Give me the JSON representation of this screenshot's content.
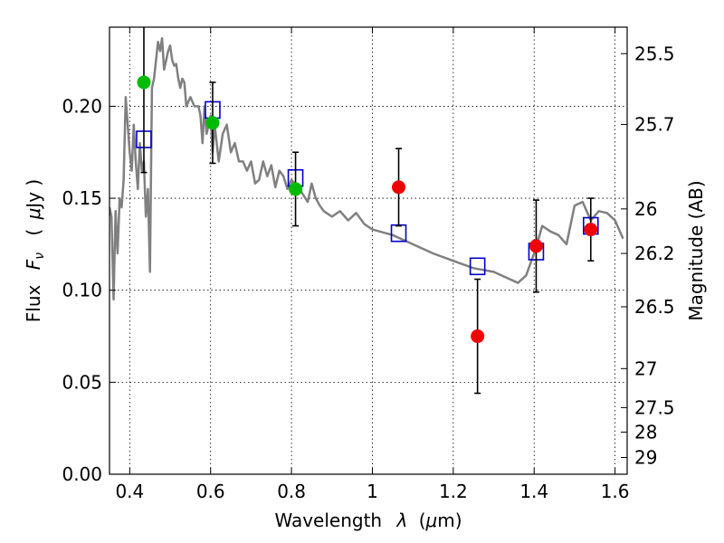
{
  "chart_data": {
    "type": "scatter",
    "xlabel_text": "Wavelength",
    "xlabel_symbol": "λ",
    "xlabel_unit_open": "(",
    "xlabel_unit_mu": "μ",
    "xlabel_unit_rest": "m)",
    "ylabel_text": "Flux",
    "ylabel_symbol_main": "F",
    "ylabel_symbol_sub": "ν",
    "ylabel_unit_open": "(",
    "ylabel_unit_mu": "μ",
    "ylabel_unit_rest": "Jy )",
    "y2label": "Magnitude (AB)",
    "xlim": [
      0.35,
      1.63
    ],
    "ylim": [
      0.0,
      0.243
    ],
    "grid": true,
    "x_ticks": [
      0.4,
      0.6,
      0.8,
      1.0,
      1.2,
      1.4,
      1.6
    ],
    "x_tick_labels": [
      "0.4",
      "0.6",
      "0.8",
      "1",
      "1.2",
      "1.4",
      "1.6"
    ],
    "y_ticks": [
      0.0,
      0.05,
      0.1,
      0.15,
      0.2
    ],
    "y_tick_labels": [
      "0.00",
      "0.05",
      "0.10",
      "0.15",
      "0.20"
    ],
    "y2_ticks": [
      {
        "label": "25.5",
        "flux": 0.2286
      },
      {
        "label": "25.7",
        "flux": 0.1901
      },
      {
        "label": "26",
        "flux": 0.1442
      },
      {
        "label": "26.2",
        "flux": 0.12
      },
      {
        "label": "26.5",
        "flux": 0.091
      },
      {
        "label": "27",
        "flux": 0.0574
      },
      {
        "label": "27.5",
        "flux": 0.0362
      },
      {
        "label": "28",
        "flux": 0.0229
      },
      {
        "label": "29",
        "flux": 0.0091
      }
    ],
    "colors": {
      "model": "#808080",
      "box": "#0000cc",
      "green": "#00bb00",
      "red": "#ee0000",
      "errorbar": "#000000"
    },
    "series": [
      {
        "kind": "model_spectrum",
        "x": [
          0.35,
          0.355,
          0.36,
          0.365,
          0.37,
          0.375,
          0.38,
          0.385,
          0.39,
          0.395,
          0.4,
          0.405,
          0.41,
          0.415,
          0.42,
          0.425,
          0.43,
          0.435,
          0.44,
          0.445,
          0.45,
          0.455,
          0.46,
          0.465,
          0.47,
          0.475,
          0.48,
          0.485,
          0.49,
          0.495,
          0.5,
          0.505,
          0.51,
          0.515,
          0.52,
          0.525,
          0.53,
          0.535,
          0.54,
          0.55,
          0.56,
          0.57,
          0.575,
          0.58,
          0.585,
          0.59,
          0.595,
          0.6,
          0.605,
          0.61,
          0.62,
          0.63,
          0.64,
          0.65,
          0.66,
          0.67,
          0.68,
          0.69,
          0.7,
          0.71,
          0.72,
          0.73,
          0.74,
          0.75,
          0.76,
          0.77,
          0.78,
          0.79,
          0.8,
          0.82,
          0.84,
          0.85,
          0.86,
          0.87,
          0.88,
          0.9,
          0.92,
          0.94,
          0.96,
          0.98,
          1.0,
          1.05,
          1.1,
          1.15,
          1.2,
          1.25,
          1.3,
          1.33,
          1.35,
          1.36,
          1.38,
          1.4,
          1.42,
          1.44,
          1.46,
          1.48,
          1.5,
          1.52,
          1.54,
          1.56,
          1.58,
          1.6,
          1.62
        ],
        "y": [
          0.145,
          0.14,
          0.095,
          0.143,
          0.12,
          0.15,
          0.145,
          0.16,
          0.205,
          0.19,
          0.175,
          0.165,
          0.19,
          0.17,
          0.155,
          0.18,
          0.165,
          0.17,
          0.14,
          0.155,
          0.11,
          0.21,
          0.215,
          0.225,
          0.235,
          0.23,
          0.237,
          0.22,
          0.225,
          0.23,
          0.233,
          0.225,
          0.222,
          0.223,
          0.215,
          0.21,
          0.215,
          0.213,
          0.2,
          0.205,
          0.2,
          0.2,
          0.195,
          0.18,
          0.2,
          0.185,
          0.19,
          0.195,
          0.175,
          0.19,
          0.17,
          0.185,
          0.19,
          0.175,
          0.18,
          0.17,
          0.17,
          0.165,
          0.17,
          0.158,
          0.16,
          0.17,
          0.162,
          0.168,
          0.156,
          0.165,
          0.162,
          0.155,
          0.16,
          0.155,
          0.148,
          0.158,
          0.15,
          0.146,
          0.143,
          0.14,
          0.143,
          0.138,
          0.142,
          0.136,
          0.133,
          0.13,
          0.125,
          0.12,
          0.116,
          0.112,
          0.11,
          0.107,
          0.105,
          0.104,
          0.108,
          0.12,
          0.135,
          0.132,
          0.13,
          0.125,
          0.146,
          0.148,
          0.138,
          0.143,
          0.142,
          0.138,
          0.128
        ]
      },
      {
        "kind": "model_box",
        "points": [
          {
            "x": 0.435,
            "y": 0.182
          },
          {
            "x": 0.605,
            "y": 0.198
          },
          {
            "x": 0.81,
            "y": 0.161
          },
          {
            "x": 1.065,
            "y": 0.131
          },
          {
            "x": 1.26,
            "y": 0.113
          },
          {
            "x": 1.405,
            "y": 0.121
          },
          {
            "x": 1.54,
            "y": 0.135
          }
        ]
      },
      {
        "kind": "green_points",
        "points": [
          {
            "x": 0.435,
            "y": 0.213,
            "err_low": 0.049,
            "err_high": 0.04
          },
          {
            "x": 0.605,
            "y": 0.191,
            "err_low": 0.022,
            "err_high": 0.022
          },
          {
            "x": 0.81,
            "y": 0.155,
            "err_low": 0.02,
            "err_high": 0.02
          }
        ]
      },
      {
        "kind": "red_points",
        "points": [
          {
            "x": 1.065,
            "y": 0.156,
            "err_low": 0.021,
            "err_high": 0.021
          },
          {
            "x": 1.26,
            "y": 0.075,
            "err_low": 0.031,
            "err_high": 0.031
          },
          {
            "x": 1.405,
            "y": 0.124,
            "err_low": 0.025,
            "err_high": 0.025
          },
          {
            "x": 1.54,
            "y": 0.133,
            "err_low": 0.017,
            "err_high": 0.017
          }
        ]
      }
    ]
  }
}
